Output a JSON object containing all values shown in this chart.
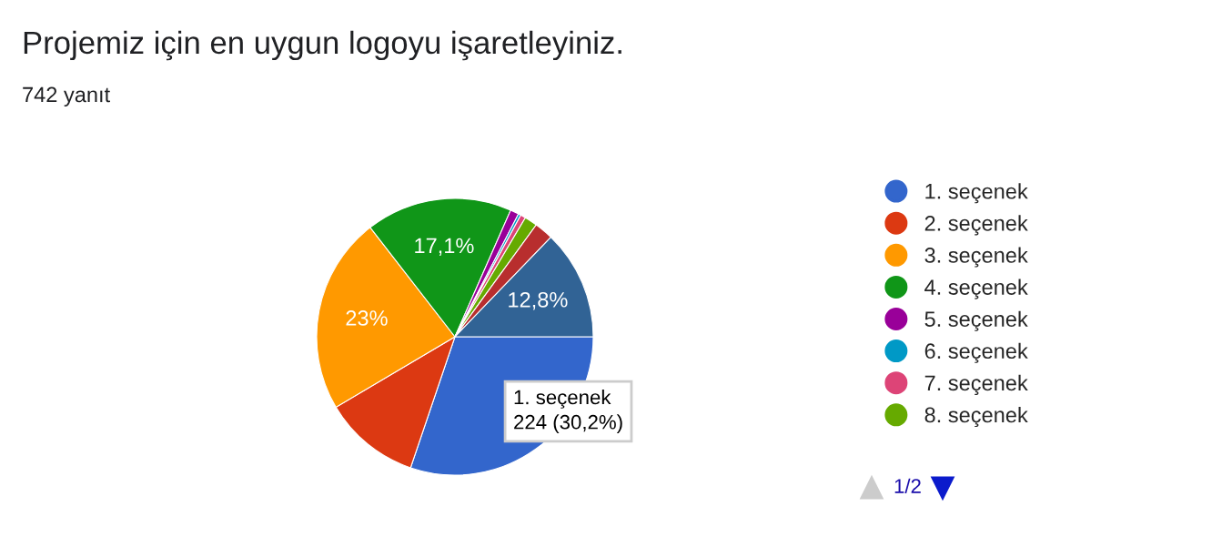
{
  "chart_data": {
    "type": "pie",
    "title": "Projemiz için en uygun logoyu işaretleyiniz.",
    "subtitle": "742 yanıt",
    "categories": [
      "1. seçenek",
      "2. seçenek",
      "3. seçenek",
      "4. seçenek",
      "5. seçenek",
      "6. seçenek",
      "7. seçenek",
      "8. seçenek",
      null,
      null
    ],
    "values": [
      30.2,
      11.3,
      23,
      17.1,
      1.0,
      0.3,
      0.6,
      1.5,
      2.2,
      12.8
    ],
    "colors": [
      "#3366cc",
      "#dc3912",
      "#ff9900",
      "#109618",
      "#990099",
      "#0099c6",
      "#dd4477",
      "#66aa00",
      "#b82e2e",
      "#316395"
    ],
    "value_labels": [
      null,
      null,
      "23%",
      "17,1%",
      null,
      null,
      null,
      null,
      null,
      "12,8%"
    ],
    "annotations": [
      "1. seçenek\n224 (30,2%)",
      "1/2"
    ],
    "legend": "right"
  }
}
